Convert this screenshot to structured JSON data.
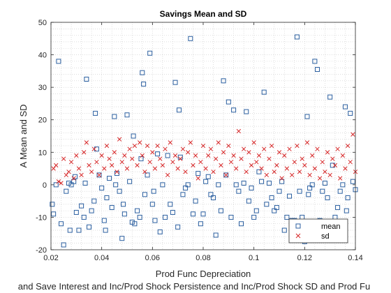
{
  "chart_data": {
    "type": "scatter",
    "title": "Savings Mean and SD",
    "xlabel": "Prod Func Depreciation",
    "xlabel2": "and Save Interest and Inc/Prod Shock Persistence and Inc/Prod Shock SD and Prod Fu",
    "ylabel": "A Mean and SD",
    "xlim": [
      0.02,
      0.14
    ],
    "ylim": [
      -20,
      50
    ],
    "xticks": [
      "0.02",
      "0.04",
      "0.06",
      "0.08",
      "0.1",
      "0.12",
      "0.14"
    ],
    "yticks": [
      "-20",
      "-10",
      "0",
      "10",
      "20",
      "30",
      "40",
      "50"
    ],
    "grid": "minor-dotted",
    "legend_placement": "bottom-right",
    "colors": {
      "mean": "#2b5fa0",
      "sd": "#d62728"
    },
    "series": [
      {
        "name": "mean",
        "marker": "square",
        "points": [
          [
            0.0205,
            -6
          ],
          [
            0.021,
            -9
          ],
          [
            0.022,
            0
          ],
          [
            0.023,
            38
          ],
          [
            0.024,
            -12
          ],
          [
            0.025,
            -18.5
          ],
          [
            0.026,
            -2
          ],
          [
            0.027,
            0.5
          ],
          [
            0.0275,
            -14
          ],
          [
            0.028,
            0
          ],
          [
            0.029,
            1
          ],
          [
            0.0295,
            2.5
          ],
          [
            0.03,
            -8.5
          ],
          [
            0.031,
            -14
          ],
          [
            0.032,
            -6.5
          ],
          [
            0.033,
            -10
          ],
          [
            0.0335,
            0.5
          ],
          [
            0.034,
            32.5
          ],
          [
            0.035,
            -13
          ],
          [
            0.036,
            -8
          ],
          [
            0.037,
            -5
          ],
          [
            0.0375,
            22
          ],
          [
            0.038,
            11
          ],
          [
            0.039,
            3
          ],
          [
            0.04,
            -1
          ],
          [
            0.041,
            -11
          ],
          [
            0.0415,
            -14
          ],
          [
            0.042,
            -4
          ],
          [
            0.043,
            2
          ],
          [
            0.044,
            -7
          ],
          [
            0.045,
            21
          ],
          [
            0.0455,
            0
          ],
          [
            0.046,
            3.5
          ],
          [
            0.047,
            -2
          ],
          [
            0.048,
            -16.5
          ],
          [
            0.0485,
            -6
          ],
          [
            0.049,
            -9
          ],
          [
            0.05,
            21.5
          ],
          [
            0.051,
            1
          ],
          [
            0.052,
            -11.5
          ],
          [
            0.0525,
            15
          ],
          [
            0.053,
            -12
          ],
          [
            0.054,
            -8
          ],
          [
            0.055,
            -10
          ],
          [
            0.0555,
            8
          ],
          [
            0.056,
            34.5
          ],
          [
            0.0565,
            31
          ],
          [
            0.057,
            -3
          ],
          [
            0.058,
            3
          ],
          [
            0.059,
            40.5
          ],
          [
            0.06,
            -6
          ],
          [
            0.0605,
            -2
          ],
          [
            0.061,
            -11
          ],
          [
            0.062,
            9.5
          ],
          [
            0.063,
            -14.5
          ],
          [
            0.064,
            0
          ],
          [
            0.065,
            -10
          ],
          [
            0.066,
            9
          ],
          [
            0.067,
            -6
          ],
          [
            0.068,
            -8.5
          ],
          [
            0.069,
            31.5
          ],
          [
            0.07,
            -13
          ],
          [
            0.0705,
            23
          ],
          [
            0.071,
            8.5
          ],
          [
            0.072,
            -3
          ],
          [
            0.073,
            -1
          ],
          [
            0.074,
            0
          ],
          [
            0.075,
            45
          ],
          [
            0.076,
            -9
          ],
          [
            0.077,
            -5
          ],
          [
            0.078,
            3.5
          ],
          [
            0.079,
            -12
          ],
          [
            0.08,
            -9
          ],
          [
            0.081,
            1
          ],
          [
            0.082,
            2.5
          ],
          [
            0.083,
            -3
          ],
          [
            0.084,
            -4
          ],
          [
            0.085,
            -15.5
          ],
          [
            0.086,
            0
          ],
          [
            0.087,
            -8
          ],
          [
            0.088,
            32
          ],
          [
            0.089,
            3
          ],
          [
            0.09,
            25.5
          ],
          [
            0.091,
            -10
          ],
          [
            0.092,
            23
          ],
          [
            0.093,
            0
          ],
          [
            0.094,
            -2
          ],
          [
            0.095,
            -12
          ],
          [
            0.096,
            0.5
          ],
          [
            0.097,
            22.5
          ],
          [
            0.098,
            -5
          ],
          [
            0.099,
            -1
          ],
          [
            0.1,
            -10
          ],
          [
            0.101,
            -8
          ],
          [
            0.102,
            4
          ],
          [
            0.103,
            1
          ],
          [
            0.104,
            28.5
          ],
          [
            0.105,
            -6
          ],
          [
            0.106,
            0.5
          ],
          [
            0.107,
            -4
          ],
          [
            0.108,
            -8
          ],
          [
            0.109,
            -7
          ],
          [
            0.11,
            -2
          ],
          [
            0.111,
            1
          ],
          [
            0.112,
            -14
          ],
          [
            0.113,
            -10
          ],
          [
            0.114,
            -3.5
          ],
          [
            0.115,
            -11
          ],
          [
            0.116,
            -11
          ],
          [
            0.117,
            45.5
          ],
          [
            0.118,
            -2
          ],
          [
            0.119,
            -10
          ],
          [
            0.12,
            -17.5
          ],
          [
            0.121,
            21
          ],
          [
            0.1215,
            -3
          ],
          [
            0.122,
            -1
          ],
          [
            0.123,
            0
          ],
          [
            0.124,
            38
          ],
          [
            0.125,
            35.5
          ],
          [
            0.126,
            -11
          ],
          [
            0.127,
            -2
          ],
          [
            0.128,
            0.5
          ],
          [
            0.129,
            -4
          ],
          [
            0.13,
            27
          ],
          [
            0.131,
            6
          ],
          [
            0.132,
            -10
          ],
          [
            0.133,
            -7
          ],
          [
            0.134,
            -2
          ],
          [
            0.135,
            0
          ],
          [
            0.136,
            24
          ],
          [
            0.1365,
            -8
          ],
          [
            0.137,
            -4
          ],
          [
            0.138,
            22
          ],
          [
            0.139,
            1
          ],
          [
            0.14,
            -1.5
          ]
        ]
      },
      {
        "name": "sd",
        "marker": "x",
        "points": [
          [
            0.021,
            5
          ],
          [
            0.022,
            6
          ],
          [
            0.023,
            1
          ],
          [
            0.024,
            0.5
          ],
          [
            0.025,
            8
          ],
          [
            0.026,
            3
          ],
          [
            0.027,
            4
          ],
          [
            0.028,
            7
          ],
          [
            0.029,
            2
          ],
          [
            0.03,
            9
          ],
          [
            0.031,
            5
          ],
          [
            0.032,
            3
          ],
          [
            0.033,
            10
          ],
          [
            0.034,
            13
          ],
          [
            0.035,
            6
          ],
          [
            0.036,
            4
          ],
          [
            0.037,
            11
          ],
          [
            0.038,
            7
          ],
          [
            0.039,
            3
          ],
          [
            0.04,
            9
          ],
          [
            0.041,
            5
          ],
          [
            0.042,
            12
          ],
          [
            0.043,
            8
          ],
          [
            0.044,
            6
          ],
          [
            0.045,
            10
          ],
          [
            0.046,
            4
          ],
          [
            0.047,
            14
          ],
          [
            0.048,
            7
          ],
          [
            0.049,
            9
          ],
          [
            0.05,
            5
          ],
          [
            0.051,
            11
          ],
          [
            0.052,
            8
          ],
          [
            0.053,
            12
          ],
          [
            0.054,
            6
          ],
          [
            0.055,
            13
          ],
          [
            0.056,
            9
          ],
          [
            0.057,
            4
          ],
          [
            0.058,
            12
          ],
          [
            0.059,
            7
          ],
          [
            0.06,
            10
          ],
          [
            0.061,
            5
          ],
          [
            0.062,
            12
          ],
          [
            0.063,
            8
          ],
          [
            0.064,
            6
          ],
          [
            0.065,
            11
          ],
          [
            0.066,
            3
          ],
          [
            0.067,
            13
          ],
          [
            0.068,
            7
          ],
          [
            0.069,
            9
          ],
          [
            0.07,
            5
          ],
          [
            0.071,
            8
          ],
          [
            0.072,
            11
          ],
          [
            0.073,
            4
          ],
          [
            0.074,
            10
          ],
          [
            0.075,
            13
          ],
          [
            0.076,
            6
          ],
          [
            0.077,
            9
          ],
          [
            0.078,
            2
          ],
          [
            0.079,
            7
          ],
          [
            0.08,
            12
          ],
          [
            0.081,
            5
          ],
          [
            0.082,
            9
          ],
          [
            0.083,
            11
          ],
          [
            0.084,
            4
          ],
          [
            0.085,
            8
          ],
          [
            0.086,
            13
          ],
          [
            0.087,
            6
          ],
          [
            0.088,
            10
          ],
          [
            0.089,
            3
          ],
          [
            0.09,
            12
          ],
          [
            0.091,
            7
          ],
          [
            0.092,
            9
          ],
          [
            0.093,
            5
          ],
          [
            0.094,
            16.5
          ],
          [
            0.095,
            8
          ],
          [
            0.096,
            11
          ],
          [
            0.097,
            4
          ],
          [
            0.098,
            10
          ],
          [
            0.099,
            6
          ],
          [
            0.1,
            13
          ],
          [
            0.101,
            7
          ],
          [
            0.102,
            9
          ],
          [
            0.103,
            5
          ],
          [
            0.104,
            11
          ],
          [
            0.105,
            3
          ],
          [
            0.106,
            8
          ],
          [
            0.107,
            12
          ],
          [
            0.108,
            4
          ],
          [
            0.109,
            6
          ],
          [
            0.11,
            10
          ],
          [
            0.111,
            2
          ],
          [
            0.112,
            9
          ],
          [
            0.113,
            5
          ],
          [
            0.114,
            11
          ],
          [
            0.115,
            3
          ],
          [
            0.116,
            7
          ],
          [
            0.117,
            12
          ],
          [
            0.118,
            4
          ],
          [
            0.119,
            8
          ],
          [
            0.12,
            6
          ],
          [
            0.121,
            13
          ],
          [
            0.122,
            3
          ],
          [
            0.123,
            9
          ],
          [
            0.124,
            5
          ],
          [
            0.125,
            11
          ],
          [
            0.126,
            2
          ],
          [
            0.127,
            7
          ],
          [
            0.128,
            4
          ],
          [
            0.129,
            10
          ],
          [
            0.13,
            3
          ],
          [
            0.131,
            8
          ],
          [
            0.132,
            6
          ],
          [
            0.133,
            11
          ],
          [
            0.134,
            2
          ],
          [
            0.135,
            9
          ],
          [
            0.136,
            5
          ],
          [
            0.137,
            12
          ],
          [
            0.138,
            7
          ],
          [
            0.139,
            15.5
          ],
          [
            0.14,
            4
          ]
        ]
      }
    ]
  }
}
